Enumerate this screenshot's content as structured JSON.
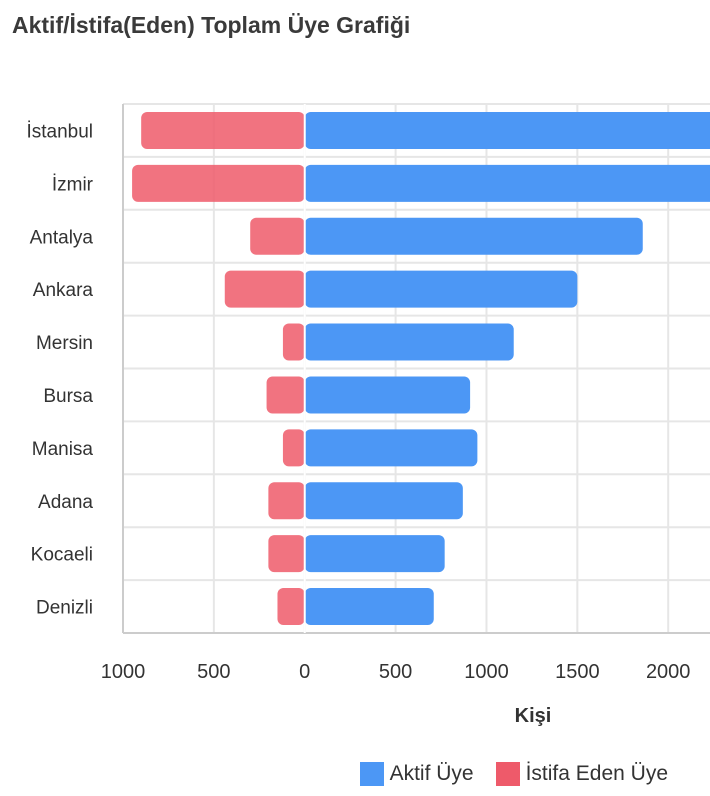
{
  "chart_data": {
    "type": "bar",
    "orientation": "horizontal-diverging",
    "title": "Aktif/İstifa(Eden) Toplam Üye Grafiği",
    "xlabel": "Kişi",
    "ylabel": "",
    "categories": [
      "İstanbul",
      "İzmir",
      "Antalya",
      "Ankara",
      "Mersin",
      "Bursa",
      "Manisa",
      "Adana",
      "Kocaeli",
      "Denizli"
    ],
    "series": [
      {
        "name": "Aktif Üye",
        "color": "#4c97f5",
        "values": [
          2300,
          2300,
          1860,
          1500,
          1150,
          910,
          950,
          870,
          770,
          710
        ]
      },
      {
        "name": "İstifa Eden Üye",
        "color": "#ee5a6a",
        "values": [
          900,
          950,
          300,
          440,
          120,
          210,
          120,
          200,
          200,
          150
        ]
      }
    ],
    "xlim": [
      -1000,
      2230
    ],
    "x_ticks": [
      -1000,
      -500,
      0,
      500,
      1000,
      1500,
      2000
    ],
    "x_tick_labels": [
      "1000",
      "500",
      "0",
      "500",
      "1000",
      "1500",
      "2000"
    ],
    "legend_position": "bottom-right",
    "grid": true
  }
}
